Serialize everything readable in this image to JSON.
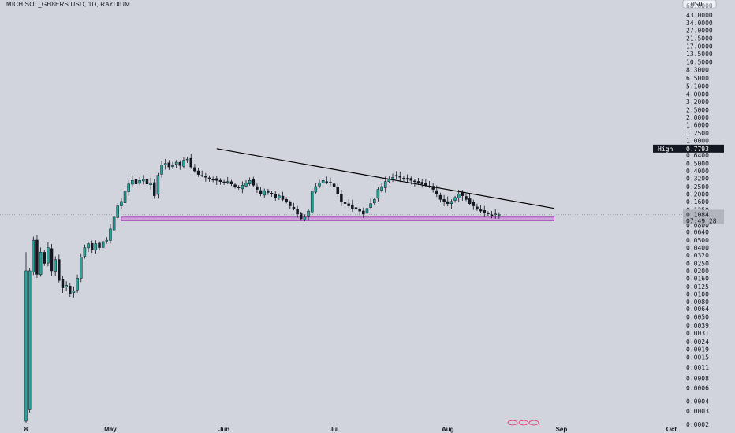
{
  "header": {
    "title": "MICHISOL_GH8ERS.USD, 1D, RAYDIUM"
  },
  "axis": {
    "currency": "USD",
    "high_label": "High",
    "high_value": "0.7793",
    "current_price": "0.1084",
    "countdown": "07:49:28",
    "top_cut_label": "68.0000"
  },
  "chart_data": {
    "type": "candlestick",
    "title": "MICHISOL_GH8ERS.USD, 1D, RAYDIUM",
    "yscale": "log",
    "ylim": [
      0.00018,
      80
    ],
    "y_ticks": [
      "43.0000",
      "34.0000",
      "27.0000",
      "21.5000",
      "17.0000",
      "13.5000",
      "10.5000",
      "8.3000",
      "6.5000",
      "5.1000",
      "4.0000",
      "3.2000",
      "2.5000",
      "2.0000",
      "1.6000",
      "1.2500",
      "1.0000",
      "0.6400",
      "0.5000",
      "0.4000",
      "0.3200",
      "0.2500",
      "0.2000",
      "0.1600",
      "0.1250",
      "0.0800",
      "0.0640",
      "0.0500",
      "0.0400",
      "0.0320",
      "0.0250",
      "0.0200",
      "0.0160",
      "0.0125",
      "0.0100",
      "0.0080",
      "0.0064",
      "0.0050",
      "0.0039",
      "0.0031",
      "0.0024",
      "0.0019",
      "0.0015",
      "0.0011",
      "0.0008",
      "0.0006",
      "0.0004",
      "0.0003",
      "0.0002"
    ],
    "y_tick_values": [
      43,
      34,
      27,
      21.5,
      17,
      13.5,
      10.5,
      8.3,
      6.5,
      5.1,
      4,
      3.2,
      2.5,
      2,
      1.6,
      1.25,
      1,
      0.64,
      0.5,
      0.4,
      0.32,
      0.25,
      0.2,
      0.16,
      0.125,
      0.08,
      0.064,
      0.05,
      0.04,
      0.032,
      0.025,
      0.02,
      0.016,
      0.0125,
      0.01,
      0.008,
      0.0064,
      0.005,
      0.0039,
      0.0031,
      0.0024,
      0.0019,
      0.0015,
      0.0011,
      0.0008,
      0.0006,
      0.0004,
      0.0003,
      0.0002
    ],
    "x_labels": [
      {
        "label": "8",
        "day": 0
      },
      {
        "label": "May",
        "day": 23
      },
      {
        "label": "Jun",
        "day": 54
      },
      {
        "label": "Jul",
        "day": 84
      },
      {
        "label": "Aug",
        "day": 115
      },
      {
        "label": "Sep",
        "day": 146
      },
      {
        "label": "Oct",
        "day": 176
      }
    ],
    "close_path": [
      0.0003,
      0.02,
      0.05,
      0.018,
      0.035,
      0.025,
      0.04,
      0.02,
      0.028,
      0.015,
      0.012,
      0.013,
      0.01,
      0.011,
      0.016,
      0.03,
      0.04,
      0.045,
      0.038,
      0.045,
      0.04,
      0.048,
      0.05,
      0.07,
      0.1,
      0.14,
      0.16,
      0.22,
      0.27,
      0.3,
      0.27,
      0.3,
      0.31,
      0.27,
      0.28,
      0.19,
      0.35,
      0.48,
      0.5,
      0.45,
      0.47,
      0.52,
      0.47,
      0.55,
      0.57,
      0.45,
      0.4,
      0.36,
      0.35,
      0.33,
      0.32,
      0.31,
      0.3,
      0.29,
      0.28,
      0.29,
      0.27,
      0.25,
      0.24,
      0.26,
      0.28,
      0.3,
      0.26,
      0.23,
      0.2,
      0.22,
      0.21,
      0.2,
      0.18,
      0.19,
      0.17,
      0.16,
      0.14,
      0.13,
      0.11,
      0.095,
      0.1,
      0.12,
      0.22,
      0.25,
      0.28,
      0.3,
      0.29,
      0.28,
      0.25,
      0.2,
      0.16,
      0.15,
      0.14,
      0.13,
      0.13,
      0.12,
      0.11,
      0.13,
      0.15,
      0.17,
      0.23,
      0.25,
      0.29,
      0.31,
      0.33,
      0.35,
      0.33,
      0.32,
      0.31,
      0.3,
      0.29,
      0.28,
      0.27,
      0.26,
      0.25,
      0.23,
      0.2,
      0.17,
      0.16,
      0.15,
      0.16,
      0.18,
      0.2,
      0.19,
      0.17,
      0.15,
      0.14,
      0.13,
      0.12,
      0.115,
      0.11,
      0.105,
      0.11,
      0.1084
    ],
    "trendline": {
      "start_day": 52,
      "start_price": 0.78,
      "end_day": 144,
      "end_price": 0.13
    },
    "support_zone": {
      "start_day": 26,
      "end_day": 144,
      "low": 0.09,
      "high": 0.1
    },
    "current_day": 130,
    "grid": false,
    "colors": {
      "up": "#26a69a",
      "down": "#131722",
      "zone_fill": "#ce93d8",
      "zone_stroke": "#9c27b0",
      "trend": "#000000",
      "bg": "#d1d4dc"
    }
  }
}
